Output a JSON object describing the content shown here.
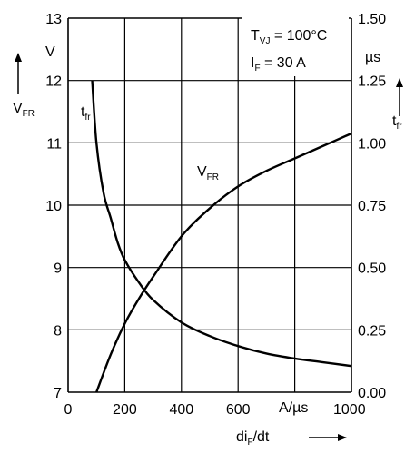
{
  "chart_data": {
    "type": "line",
    "x": {
      "label_main": "di",
      "label_sub": "F",
      "label_tail": "/dt",
      "unit": "A/µs",
      "range": [
        0,
        1000
      ],
      "ticks": [
        "0",
        "200",
        "400",
        "600",
        "1000"
      ],
      "gridlines": [
        0,
        200,
        400,
        600,
        800,
        1000
      ]
    },
    "y_left": {
      "label_main": "V",
      "label_sub": "FR",
      "unit": "V",
      "range": [
        7,
        13
      ],
      "ticks": [
        "7",
        "8",
        "9",
        "10",
        "11",
        "12",
        "13"
      ]
    },
    "y_right": {
      "label_main": "t",
      "label_sub": "fr",
      "unit": "µs",
      "range": [
        0,
        1.5
      ],
      "ticks": [
        "0.00",
        "0.25",
        "0.50",
        "0.75",
        "1.00",
        "1.25",
        "1.50"
      ]
    },
    "conditions": [
      {
        "main": "T",
        "sub": "VJ",
        "tail": " = 100°C"
      },
      {
        "main": "I",
        "sub": "F",
        "tail": " = 30 A"
      }
    ],
    "series": [
      {
        "name": "V_FR",
        "label_main": "V",
        "label_sub": "FR",
        "axis": "left",
        "points": [
          [
            100,
            7.0
          ],
          [
            150,
            7.6
          ],
          [
            200,
            8.1
          ],
          [
            250,
            8.5
          ],
          [
            300,
            8.85
          ],
          [
            400,
            9.5
          ],
          [
            500,
            9.95
          ],
          [
            600,
            10.3
          ],
          [
            700,
            10.55
          ],
          [
            800,
            10.75
          ],
          [
            900,
            10.95
          ],
          [
            1000,
            11.15
          ]
        ]
      },
      {
        "name": "t_fr",
        "label_main": "t",
        "label_sub": "fr",
        "axis": "right",
        "points": [
          [
            85,
            1.25
          ],
          [
            100,
            1.0
          ],
          [
            125,
            0.8
          ],
          [
            150,
            0.7
          ],
          [
            175,
            0.6
          ],
          [
            200,
            0.53
          ],
          [
            250,
            0.44
          ],
          [
            300,
            0.37
          ],
          [
            400,
            0.28
          ],
          [
            500,
            0.225
          ],
          [
            600,
            0.185
          ],
          [
            700,
            0.155
          ],
          [
            800,
            0.135
          ],
          [
            900,
            0.12
          ],
          [
            1000,
            0.105
          ]
        ]
      }
    ],
    "grid": true
  }
}
